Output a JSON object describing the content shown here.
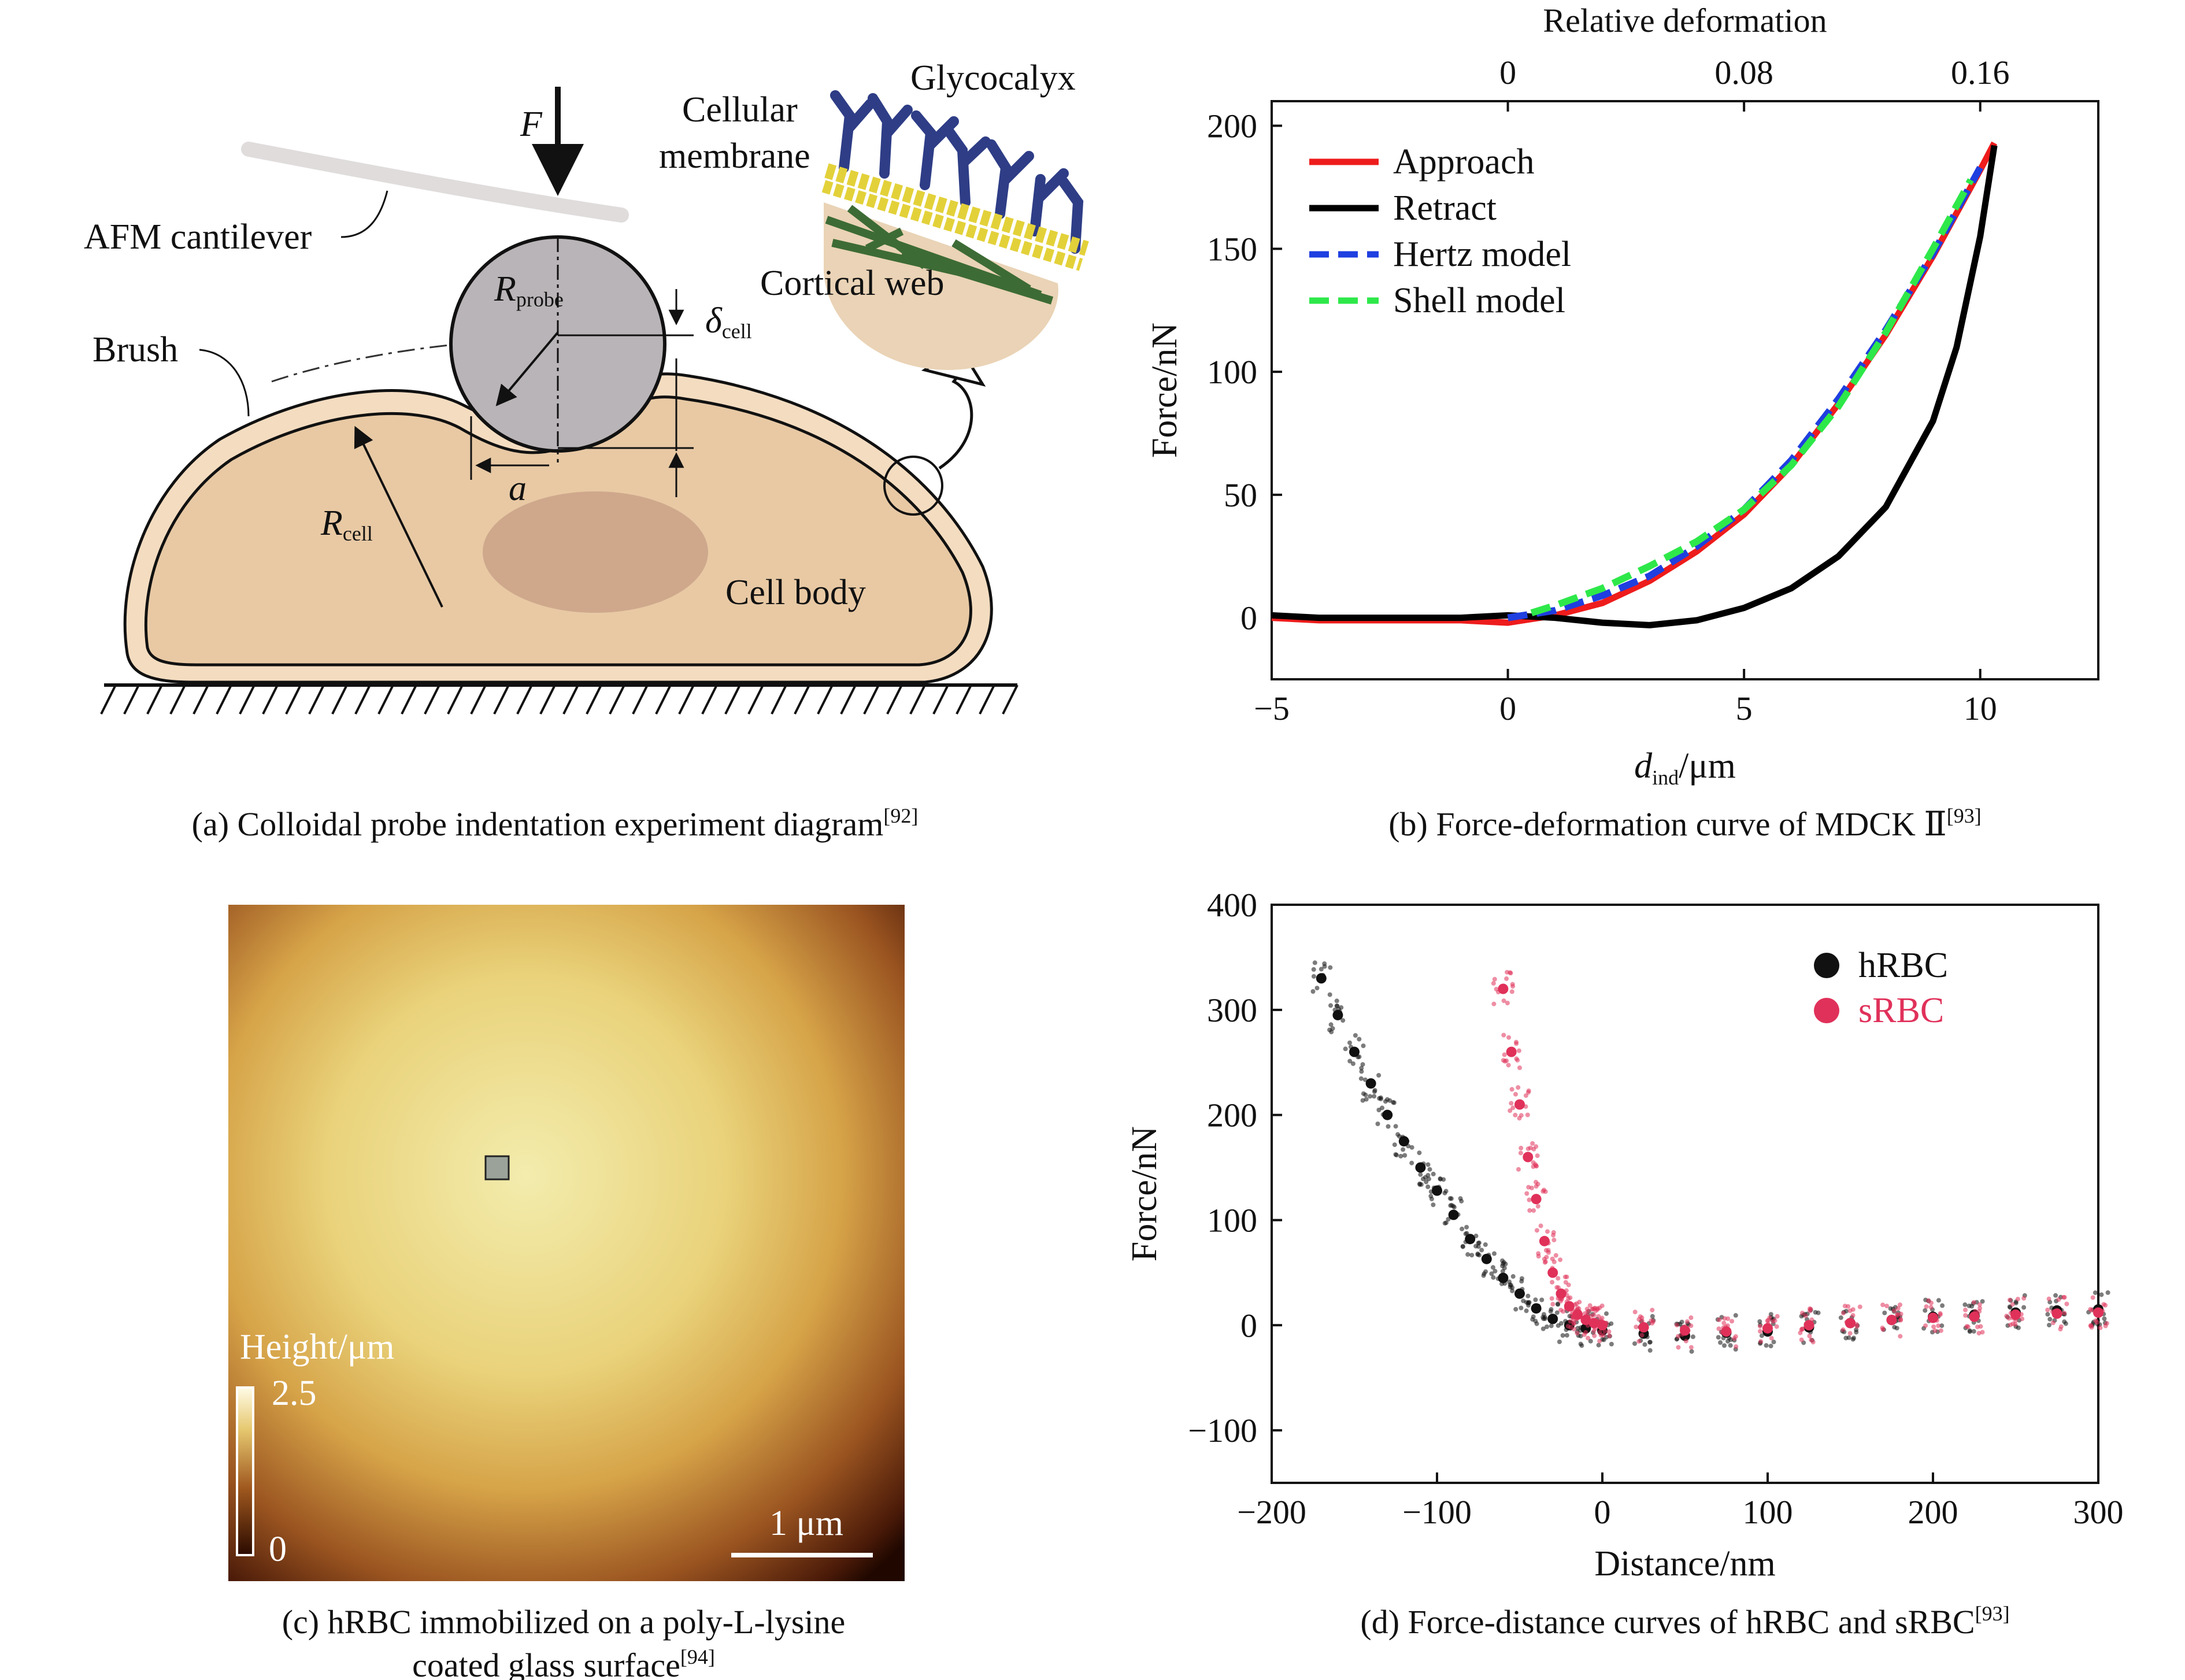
{
  "panel_a": {
    "force_label": "F",
    "cantilever_label": "AFM cantilever",
    "brush_label": "Brush",
    "probe_label_main": "R",
    "probe_label_sub": "probe",
    "delta_main": "δ",
    "delta_sub": "cell",
    "a_label": "a",
    "rcell_main": "R",
    "rcell_sub": "cell",
    "cellbody_label": "Cell body",
    "membrane_label_1": "Cellular",
    "membrane_label_2": "membrane",
    "glycocalyx_label": "Glycocalyx",
    "cortical_label": "Cortical web",
    "caption": "(a) Colloidal probe indentation experiment diagram",
    "caption_ref": "[92]",
    "colors": {
      "cell": "#e8c9a4",
      "cell_edge": "#f4dcc0",
      "nucleus": "#caa288",
      "probe": "#b9b4b7",
      "cortical": "#3d6b35",
      "glyco": "#2e3d86",
      "lipid": "#e3d13a"
    }
  },
  "panel_b": {
    "caption": "(b) Force-deformation curve of MDCK Ⅱ",
    "caption_ref": "[93]",
    "chart_data": {
      "type": "line",
      "xlabel_main": "d",
      "xlabel_sub": "ind",
      "xlabel_unit": "/μm",
      "ylabel": "Force/nN",
      "top_xlabel": "Relative deformation",
      "xlim": [
        -5,
        12.5
      ],
      "ylim": [
        -25,
        210
      ],
      "xticks": [
        -5,
        0,
        5,
        10
      ],
      "yticks": [
        0,
        50,
        100,
        150,
        200
      ],
      "top_ticks": [
        {
          "pos": 0,
          "label": "0"
        },
        {
          "pos": 5,
          "label": "0.08"
        },
        {
          "pos": 10,
          "label": "0.16"
        }
      ],
      "legend_position": "top-left",
      "series": [
        {
          "name": "Approach",
          "color": "#ee1c1c",
          "dash": false,
          "x": [
            -5,
            -4,
            -3,
            -2,
            -1,
            0,
            1,
            2,
            3,
            4,
            5,
            6,
            7,
            8,
            9,
            10,
            10.3
          ],
          "y": [
            0,
            -1,
            -1,
            -1,
            -1,
            -2,
            1,
            6,
            15,
            27,
            42,
            62,
            87,
            115,
            147,
            182,
            193
          ]
        },
        {
          "name": "Retract",
          "color": "#000000",
          "dash": false,
          "x": [
            -5,
            -4,
            -3,
            -2,
            -1,
            0,
            1,
            2,
            3,
            4,
            5,
            6,
            7,
            8,
            9,
            9.5,
            10,
            10.3
          ],
          "y": [
            1,
            0,
            0,
            0,
            0,
            1,
            0,
            -2,
            -3,
            -1,
            4,
            12,
            25,
            45,
            80,
            110,
            155,
            192
          ]
        },
        {
          "name": "Hertz model",
          "color": "#1f3fe0",
          "dash": true,
          "x": [
            0,
            1,
            2,
            3,
            4,
            5,
            6,
            7,
            8,
            9,
            10
          ],
          "y": [
            0,
            3,
            9,
            17,
            29,
            44,
            64,
            89,
            117,
            148,
            183
          ]
        },
        {
          "name": "Shell model",
          "color": "#2ee84a",
          "dash": true,
          "x": [
            0.5,
            1,
            2,
            3,
            4,
            5,
            6,
            7,
            8,
            9,
            9.8
          ],
          "y": [
            2,
            5,
            12,
            21,
            31,
            44,
            62,
            86,
            116,
            150,
            178
          ]
        }
      ]
    }
  },
  "panel_c": {
    "height_label": "Height/μm",
    "scale_max": "2.5",
    "scale_min": "0",
    "scalebar_label": "1 μm",
    "caption_line1": "(c) hRBC immobilized on a poly-L-lysine",
    "caption_line2": "coated glass surface",
    "caption_ref": "[94]"
  },
  "panel_d": {
    "caption": "(d) Force-distance curves of hRBC and sRBC",
    "caption_ref": "[93]",
    "chart_data": {
      "type": "scatter",
      "xlabel": "Distance/nm",
      "ylabel": "Force/nN",
      "xlim": [
        -200,
        300
      ],
      "ylim": [
        -150,
        400
      ],
      "xticks": [
        -200,
        -100,
        0,
        100,
        200,
        300
      ],
      "yticks": [
        -100,
        0,
        100,
        200,
        300,
        400
      ],
      "legend_position": "top-right",
      "series": [
        {
          "name": "hRBC",
          "color": "#111111",
          "x": [
            -170,
            -160,
            -150,
            -140,
            -130,
            -120,
            -110,
            -100,
            -90,
            -80,
            -70,
            -60,
            -50,
            -40,
            -30,
            -20,
            -10,
            0,
            25,
            50,
            75,
            100,
            125,
            150,
            175,
            200,
            225,
            250,
            275,
            300
          ],
          "y": [
            330,
            295,
            260,
            230,
            200,
            175,
            150,
            128,
            105,
            82,
            63,
            45,
            30,
            16,
            6,
            0,
            -3,
            -5,
            -8,
            -10,
            -7,
            -6,
            -2,
            2,
            5,
            8,
            10,
            12,
            14,
            15
          ]
        },
        {
          "name": "sRBC",
          "color": "#e0315a",
          "x": [
            -60,
            -55,
            -50,
            -45,
            -40,
            -35,
            -30,
            -25,
            -20,
            -15,
            -10,
            -5,
            0,
            25,
            50,
            75,
            100,
            125,
            150,
            175,
            200,
            225,
            250,
            275,
            300
          ],
          "y": [
            320,
            260,
            210,
            160,
            120,
            80,
            50,
            30,
            18,
            10,
            5,
            2,
            0,
            -2,
            -5,
            -6,
            -3,
            0,
            2,
            5,
            7,
            8,
            10,
            11,
            12
          ]
        }
      ]
    }
  }
}
